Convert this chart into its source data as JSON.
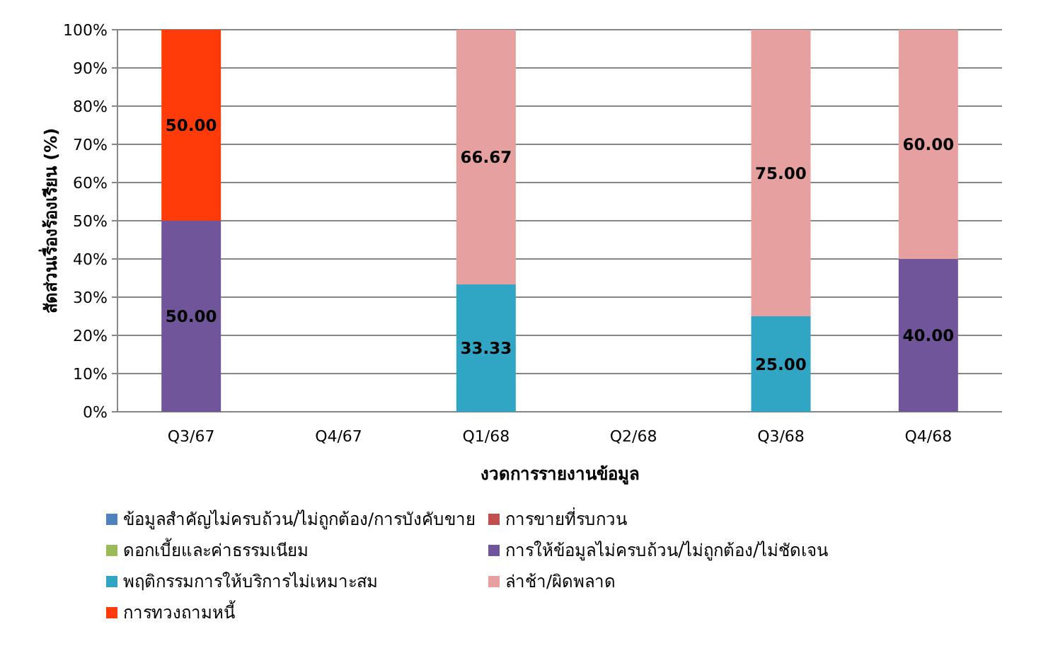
{
  "chart_data": {
    "type": "bar",
    "stacked": true,
    "xlabel": "งวดการรายงานข้อมูล",
    "ylabel": "สัดส่วนเรื่องร้องเรียน (%)",
    "categories": [
      "Q3/67",
      "Q4/67",
      "Q1/68",
      "Q2/68",
      "Q3/68",
      "Q4/68"
    ],
    "series": [
      {
        "name": "ข้อมูลสำคัญไม่ครบถ้วน/ไม่ถูกต้อง/การบังคับขาย",
        "color": "#4f81bd",
        "values": [
          null,
          null,
          null,
          null,
          null,
          null
        ]
      },
      {
        "name": "การขายที่รบกวน",
        "color": "#c0504d",
        "values": [
          null,
          null,
          null,
          null,
          null,
          null
        ]
      },
      {
        "name": "ดอกเบี้ยและค่าธรรมเนียม",
        "color": "#9bbb59",
        "values": [
          null,
          null,
          null,
          null,
          null,
          null
        ]
      },
      {
        "name": "การให้ข้อมูลไม่ครบถ้วน/ไม่ถูกต้อง/ไม่ชัดเจน",
        "color": "#71559a",
        "values": [
          50,
          null,
          null,
          null,
          null,
          40
        ],
        "value_labels": [
          "50.00",
          null,
          null,
          null,
          null,
          "40.00"
        ]
      },
      {
        "name": "พฤติกรรมการให้บริการไม่เหมาะสม",
        "color": "#31a5c4",
        "values": [
          null,
          null,
          33.33,
          null,
          25,
          null
        ],
        "value_labels": [
          null,
          null,
          "33.33",
          null,
          "25.00",
          null
        ]
      },
      {
        "name": "ล่าช้า/ผิดพลาด",
        "color": "#e5a09f",
        "values": [
          null,
          null,
          66.67,
          null,
          75,
          60
        ],
        "value_labels": [
          null,
          null,
          "66.67",
          null,
          "75.00",
          "60.00"
        ]
      },
      {
        "name": "การทวงถามหนี้",
        "color": "#ff3b0a",
        "values": [
          50,
          null,
          null,
          null,
          null,
          null
        ],
        "value_labels": [
          "50.00",
          null,
          null,
          null,
          null,
          null
        ]
      }
    ],
    "ylim": [
      0,
      100
    ],
    "yticks": [
      {
        "value": 0,
        "label": "0%"
      },
      {
        "value": 10,
        "label": "10%"
      },
      {
        "value": 20,
        "label": "20%"
      },
      {
        "value": 30,
        "label": "30%"
      },
      {
        "value": 40,
        "label": "40%"
      },
      {
        "value": 50,
        "label": "50%"
      },
      {
        "value": 60,
        "label": "60%"
      },
      {
        "value": 70,
        "label": "70%"
      },
      {
        "value": 80,
        "label": "80%"
      },
      {
        "value": 90,
        "label": "90%"
      },
      {
        "value": 100,
        "label": "100%"
      }
    ],
    "grid": "y",
    "legend": "bottom"
  }
}
